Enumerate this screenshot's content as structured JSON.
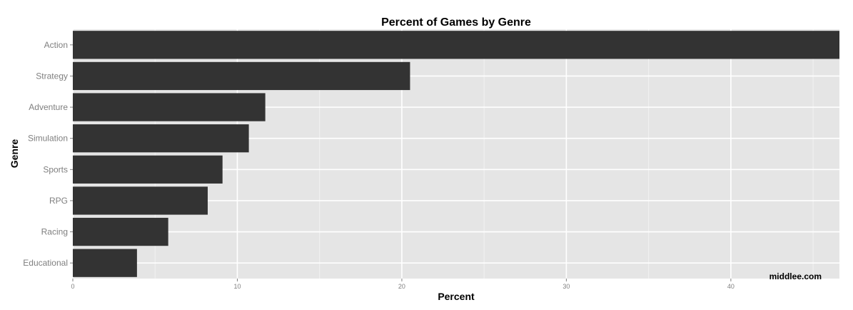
{
  "chart_data": {
    "type": "bar",
    "orientation": "horizontal",
    "title": "Percent of Games by Genre",
    "xlabel": "Percent",
    "ylabel": "Genre",
    "categories": [
      "Action",
      "Strategy",
      "Adventure",
      "Simulation",
      "Sports",
      "RPG",
      "Racing",
      "Educational"
    ],
    "values": [
      46.6,
      20.5,
      11.7,
      10.7,
      9.1,
      8.2,
      5.8,
      3.9
    ],
    "xlim": [
      0,
      46.6
    ],
    "xticks": [
      0,
      10,
      20,
      30,
      40
    ],
    "grid": true,
    "colors": {
      "bar": "#333333",
      "panel": "#e5e5e5",
      "grid_major": "#ffffff",
      "grid_minor": "#f2f2f2"
    },
    "watermark": "middlee.com"
  }
}
